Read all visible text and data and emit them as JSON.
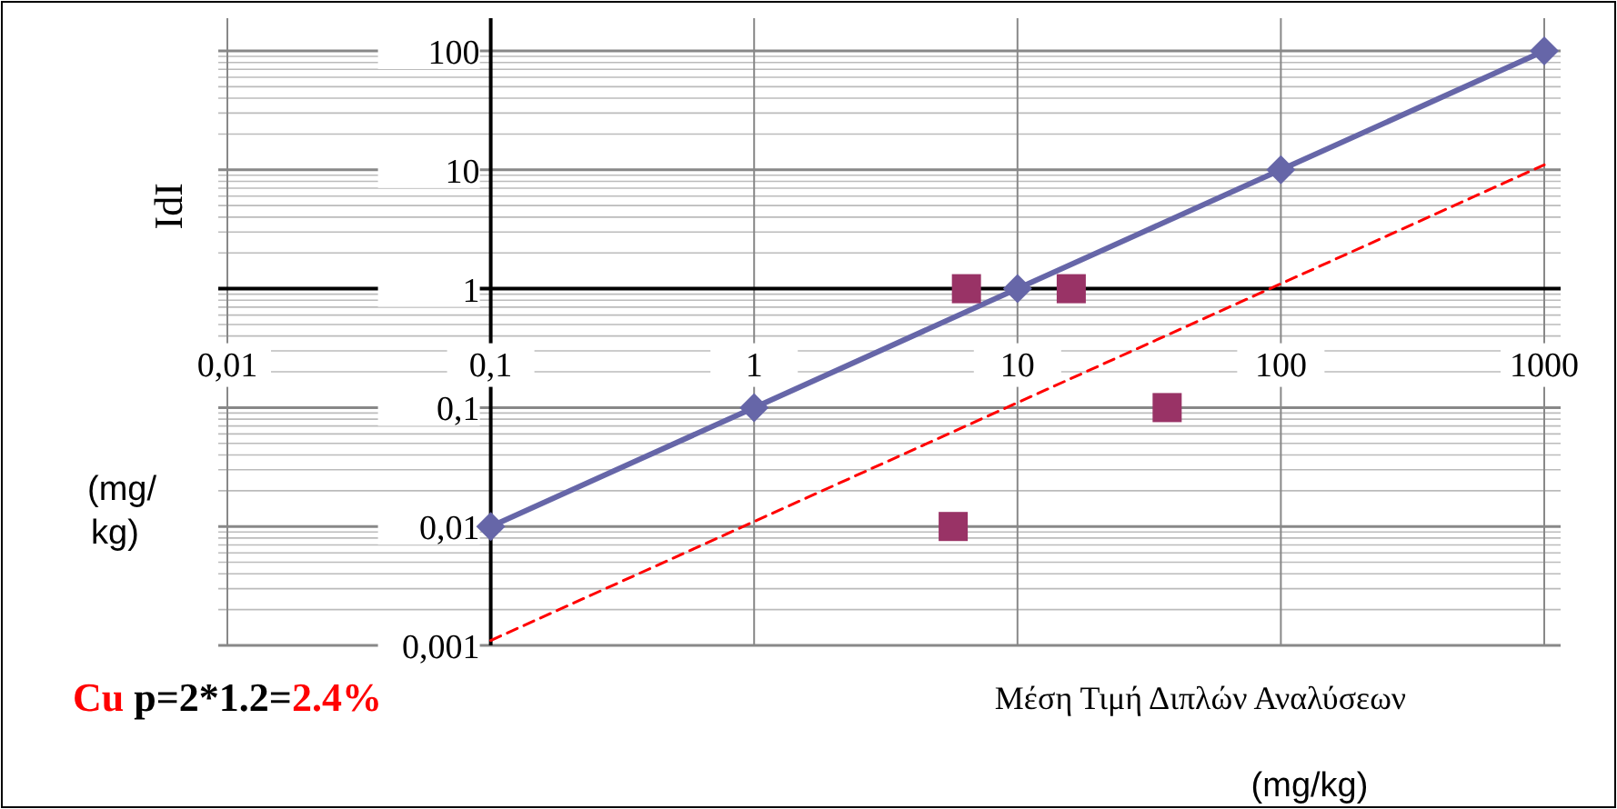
{
  "chart_data": {
    "type": "scatter",
    "xlabel": "Μέση Τιμή Διπλών Αναλύσεων",
    "ylabel": "IdI",
    "log": "xy",
    "grid": true,
    "xlim": [
      0.01,
      1000
    ],
    "ylim": [
      0.001,
      100
    ],
    "xticks": [
      {
        "value": 0.01,
        "label": "0,01"
      },
      {
        "value": 0.1,
        "label": "0,1"
      },
      1,
      10,
      100,
      1000
    ],
    "yticks": [
      {
        "value": 0.001,
        "label": "0,001"
      },
      {
        "value": 0.01,
        "label": "0,01"
      },
      {
        "value": 0.1,
        "label": "0,1"
      },
      1,
      10,
      100
    ],
    "series": [
      {
        "type": "line",
        "color": "#6666a8",
        "marker": "diamond",
        "line_style": "solid",
        "x": [
          0.1,
          1,
          10,
          100,
          1000
        ],
        "values": [
          0.01,
          0.1,
          1,
          10,
          100
        ]
      },
      {
        "color": "#993366",
        "marker": "square",
        "x": [
          6.4,
          16,
          5.7,
          37
        ],
        "values": [
          1,
          1,
          0.01,
          0.1
        ]
      },
      {
        "type": "line",
        "color": "#ff0000",
        "marker": "none",
        "line_style": "dashed",
        "x": [
          0.1,
          1000
        ],
        "values": [
          0.0011,
          11
        ]
      }
    ],
    "annotations": [
      "(mg/ kg)",
      "Cu p=2*1.2=2.4%",
      "(mg/kg)"
    ]
  }
}
